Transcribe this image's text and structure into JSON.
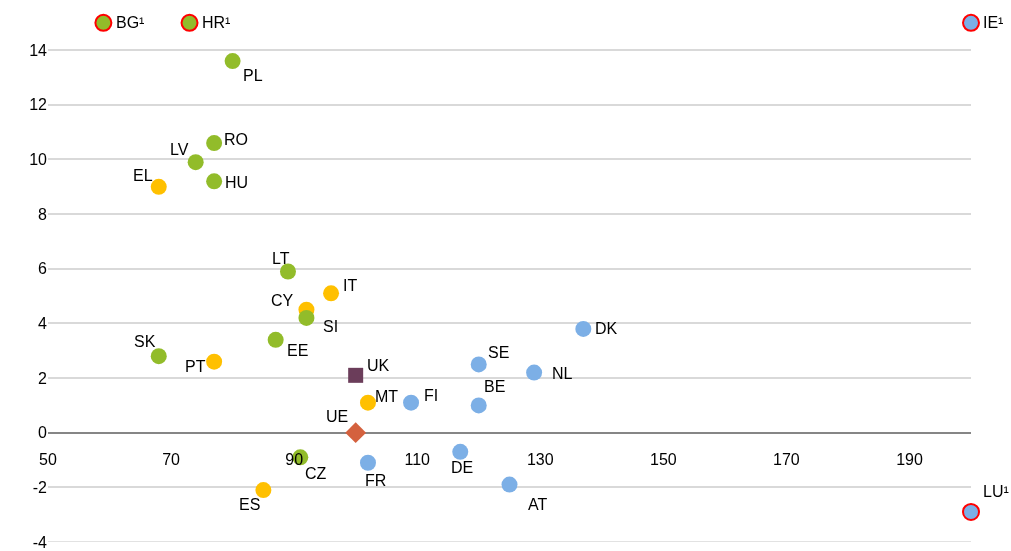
{
  "chart_data": {
    "type": "scatter",
    "xlim": [
      50,
      200
    ],
    "xticks": [
      50,
      70,
      90,
      110,
      130,
      150,
      170,
      190
    ],
    "ylim": [
      -4,
      15.8
    ],
    "yticks": [
      -4,
      -2,
      0,
      2,
      4,
      6,
      8,
      10,
      12,
      14
    ],
    "grid": "y",
    "series": [
      {
        "color": "#ffc000",
        "marker": "circle",
        "x": [
          68,
          92,
          96,
          77,
          102,
          85
        ],
        "values": [
          9.0,
          4.5,
          5.1,
          2.6,
          1.1,
          -2.1
        ]
      },
      {
        "color": "#92bc2a",
        "marker": "circle",
        "x": [
          80,
          77,
          74,
          77,
          89,
          92,
          87,
          68,
          91
        ],
        "values": [
          13.6,
          10.6,
          9.9,
          9.2,
          5.9,
          4.2,
          3.4,
          2.8,
          -0.9
        ]
      },
      {
        "color": "#7cafe6",
        "marker": "circle",
        "x": [
          109,
          120,
          120,
          129,
          137,
          117,
          102,
          125
        ],
        "values": [
          1.1,
          2.5,
          1.0,
          2.2,
          3.8,
          -0.7,
          -1.1,
          -1.9
        ]
      },
      {
        "color": "#6b3d5a",
        "marker": "square",
        "x": [
          100
        ],
        "values": [
          2.1
        ]
      },
      {
        "color": "#d4613e",
        "marker": "diamond",
        "x": [
          100
        ],
        "values": [
          0
        ]
      },
      {
        "color": "#ff0000",
        "colors": [
          "#92bc2a",
          "#92bc2a",
          "#7cafe6",
          "#7cafe6"
        ],
        "marker": "circle",
        "x": [
          59,
          73,
          200,
          200
        ],
        "values": [
          15,
          15,
          15,
          -2.9
        ]
      }
    ],
    "annotations": [
      {
        "text": "EL",
        "x": 68,
        "y": 9.0
      },
      {
        "text": "CY",
        "x": 92,
        "y": 4.5
      },
      {
        "text": "IT",
        "x": 96,
        "y": 5.1
      },
      {
        "text": "PT",
        "x": 77,
        "y": 2.6
      },
      {
        "text": "MT",
        "x": 102,
        "y": 1.1
      },
      {
        "text": "ES",
        "x": 85,
        "y": -2.1
      },
      {
        "text": "PL",
        "x": 80,
        "y": 13.6
      },
      {
        "text": "RO",
        "x": 77,
        "y": 10.6
      },
      {
        "text": "LV",
        "x": 74,
        "y": 9.9
      },
      {
        "text": "HU",
        "x": 77,
        "y": 9.2
      },
      {
        "text": "LT",
        "x": 89,
        "y": 5.9
      },
      {
        "text": "SI",
        "x": 92,
        "y": 4.2
      },
      {
        "text": "EE",
        "x": 87,
        "y": 3.4
      },
      {
        "text": "SK",
        "x": 68,
        "y": 2.8
      },
      {
        "text": "CZ",
        "x": 91,
        "y": -0.9
      },
      {
        "text": "FI",
        "x": 109,
        "y": 1.1
      },
      {
        "text": "SE",
        "x": 120,
        "y": 2.5
      },
      {
        "text": "BE",
        "x": 120,
        "y": 1.0
      },
      {
        "text": "NL",
        "x": 129,
        "y": 2.2
      },
      {
        "text": "DK",
        "x": 137,
        "y": 3.8
      },
      {
        "text": "DE",
        "x": 117,
        "y": -0.7
      },
      {
        "text": "FR",
        "x": 102,
        "y": -1.1
      },
      {
        "text": "AT",
        "x": 125,
        "y": -1.9
      },
      {
        "text": "UK",
        "x": 100,
        "y": 2.1
      },
      {
        "text": "UE",
        "x": 100,
        "y": 0
      },
      {
        "text": "BG¹",
        "x": 59,
        "y": 15
      },
      {
        "text": "HR¹",
        "x": 73,
        "y": 15
      },
      {
        "text": "IE¹",
        "x": 200,
        "y": 15
      },
      {
        "text": "LU¹",
        "x": 200,
        "y": -2.9
      }
    ]
  }
}
